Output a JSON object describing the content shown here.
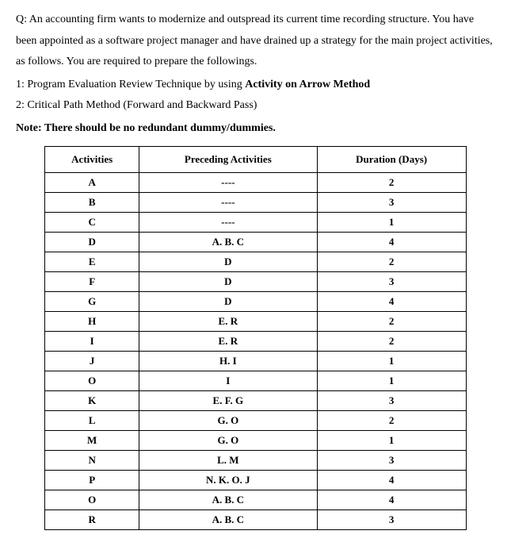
{
  "intro": {
    "p1": "Q: An accounting firm wants to modernize and outspread its current time recording structure. You have been appointed as a software project manager and have drained up a strategy for the main project activities, as follows. You are required to prepare the followings.",
    "item1_prefix": "1: Program Evaluation Review Technique by using ",
    "item1_bold": "Activity on Arrow Method",
    "item2": "2: Critical Path Method (Forward and Backward Pass)",
    "note": "Note: There should be no redundant dummy/dummies."
  },
  "table": {
    "headers": {
      "activities": "Activities",
      "preceding": "Preceding Activities",
      "duration": "Duration (Days)"
    },
    "rows": [
      {
        "activity": "A",
        "preceding": "----",
        "duration": "2"
      },
      {
        "activity": "B",
        "preceding": "----",
        "duration": "3"
      },
      {
        "activity": "C",
        "preceding": "----",
        "duration": "1"
      },
      {
        "activity": "D",
        "preceding": "A. B. C",
        "duration": "4"
      },
      {
        "activity": "E",
        "preceding": "D",
        "duration": "2"
      },
      {
        "activity": "F",
        "preceding": "D",
        "duration": "3"
      },
      {
        "activity": "G",
        "preceding": "D",
        "duration": "4"
      },
      {
        "activity": "H",
        "preceding": "E. R",
        "duration": "2"
      },
      {
        "activity": "I",
        "preceding": "E. R",
        "duration": "2"
      },
      {
        "activity": "J",
        "preceding": "H. I",
        "duration": "1"
      },
      {
        "activity": "O",
        "preceding": "I",
        "duration": "1"
      },
      {
        "activity": "K",
        "preceding": "E. F. G",
        "duration": "3"
      },
      {
        "activity": "L",
        "preceding": "G. O",
        "duration": "2"
      },
      {
        "activity": "M",
        "preceding": "G. O",
        "duration": "1"
      },
      {
        "activity": "N",
        "preceding": "L. M",
        "duration": "3"
      },
      {
        "activity": "P",
        "preceding": "N. K. O. J",
        "duration": "4"
      },
      {
        "activity": "O",
        "preceding": "A. B. C",
        "duration": "4"
      },
      {
        "activity": "R",
        "preceding": "A. B. C",
        "duration": "3"
      }
    ]
  }
}
